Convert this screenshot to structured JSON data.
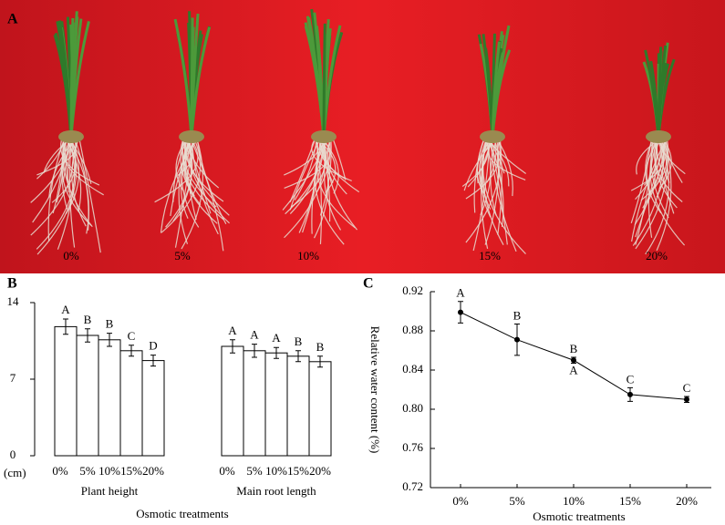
{
  "figure": {
    "panel_a": {
      "label": "A",
      "treatments": [
        "0%",
        "5%",
        "10%",
        "15%",
        "20%"
      ]
    }
  },
  "chart_data": [
    {
      "type": "bar",
      "panel": "B",
      "categories": [
        "Plant height",
        "Main root length"
      ],
      "x_label": "Osmotic treatments",
      "y_unit": "(cm)",
      "ylim": [
        0,
        14
      ],
      "yticks": [
        0,
        7,
        14
      ],
      "color": "#ffffff",
      "series": [
        {
          "name": "0%",
          "values": [
            11.8,
            10.0
          ],
          "errors": [
            0.7,
            0.6
          ],
          "letters": [
            "A",
            "A"
          ]
        },
        {
          "name": "5%",
          "values": [
            11.0,
            9.6
          ],
          "errors": [
            0.6,
            0.6
          ],
          "letters": [
            "B",
            "A"
          ]
        },
        {
          "name": "10%",
          "values": [
            10.6,
            9.4
          ],
          "errors": [
            0.6,
            0.5
          ],
          "letters": [
            "B",
            "A"
          ]
        },
        {
          "name": "15%",
          "values": [
            9.6,
            9.1
          ],
          "errors": [
            0.5,
            0.5
          ],
          "letters": [
            "C",
            "B"
          ]
        },
        {
          "name": "20%",
          "values": [
            8.7,
            8.6
          ],
          "errors": [
            0.5,
            0.5
          ],
          "letters": [
            "D",
            "B"
          ]
        }
      ]
    },
    {
      "type": "line",
      "panel": "C",
      "categories": [
        "0%",
        "5%",
        "10%",
        "15%",
        "20%"
      ],
      "x_label": "Osmotic treatments",
      "y_label": "Relative water content (%)",
      "ylim": [
        0.72,
        0.92
      ],
      "yticks": [
        0.72,
        0.76,
        {
          "value": 0.8,
          "label": "0.80"
        },
        0.84,
        0.88,
        0.92
      ],
      "color": "#000000",
      "values": [
        0.899,
        0.871,
        0.85,
        0.815,
        0.81
      ],
      "errors": [
        0.011,
        0.016,
        0.003,
        0.007,
        0.003
      ],
      "letters": [
        "A",
        "B",
        "B",
        "C",
        "C"
      ],
      "lower_letters": [
        null,
        null,
        "A",
        null,
        null
      ]
    }
  ]
}
